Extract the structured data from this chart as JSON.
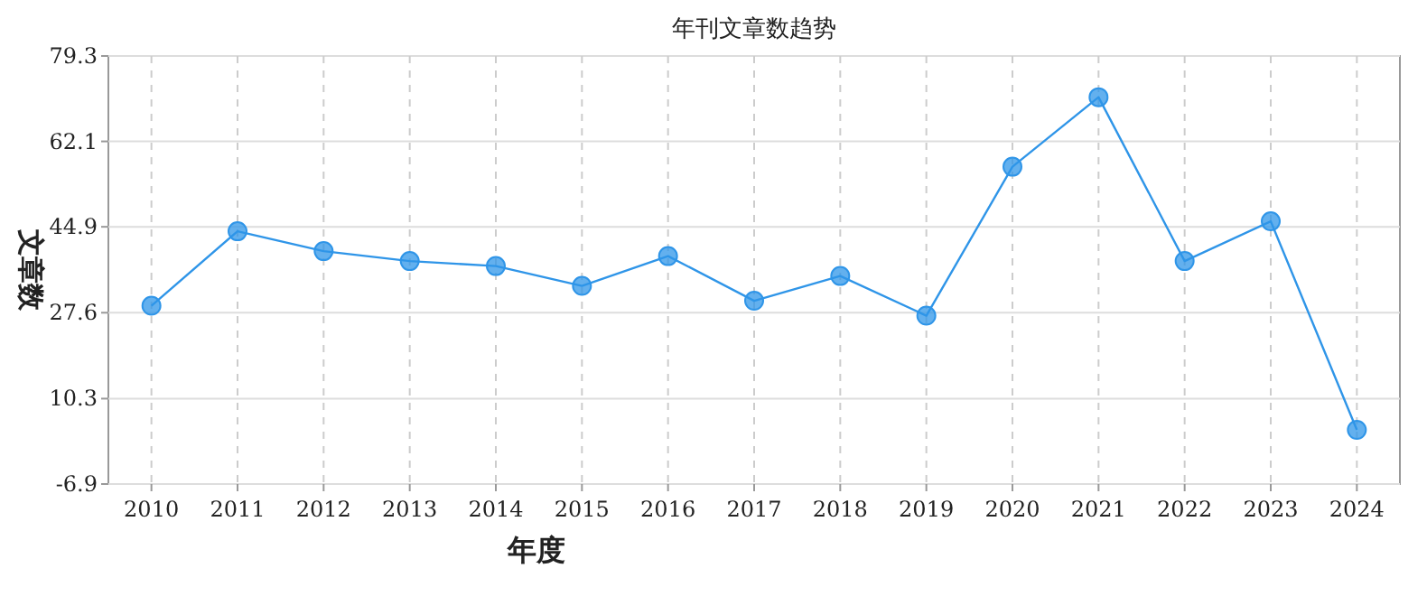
{
  "chart_data": {
    "type": "line",
    "title": "年刊文章数趋势",
    "xlabel": "年度",
    "ylabel": "文章数",
    "categories": [
      "2010",
      "2011",
      "2012",
      "2013",
      "2014",
      "2015",
      "2016",
      "2017",
      "2018",
      "2019",
      "2020",
      "2021",
      "2022",
      "2023",
      "2024"
    ],
    "series": [
      {
        "color": "#2f95e8",
        "values": [
          29,
          44,
          40,
          38,
          37,
          33,
          39,
          30,
          35,
          27,
          57,
          71,
          38,
          46,
          4
        ]
      }
    ],
    "ylim": [
      -6.9,
      79.3
    ],
    "yticks": [
      -6.9,
      10.3,
      27.6,
      44.9,
      62.1,
      79.3
    ],
    "grid": true,
    "marker": "circle",
    "line_style": "solid"
  }
}
